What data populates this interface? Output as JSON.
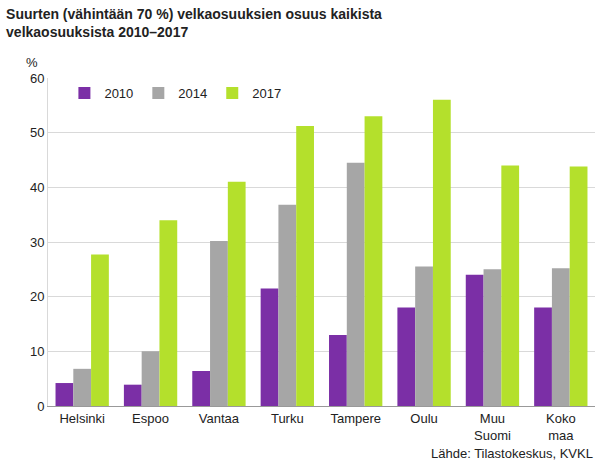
{
  "chart_data": {
    "type": "bar",
    "title": "Suurten (vähintään 70 %) velkaosuuksien osuus kaikista\nvelkaosuuksista 2010–2017",
    "ylabel": "%",
    "source": "Lähde: Tilastokeskus, KVKL",
    "categories": [
      "Helsinki",
      "Espoo",
      "Vantaa",
      "Turku",
      "Tampere",
      "Oulu",
      "Muu Suomi",
      "Koko maa"
    ],
    "series": [
      {
        "name": "2010",
        "color": "#7b2fa6",
        "values": [
          4.2,
          3.9,
          6.4,
          21.5,
          13,
          18,
          24,
          18
        ]
      },
      {
        "name": "2014",
        "color": "#a6a6a6",
        "values": [
          6.8,
          10,
          30.2,
          36.8,
          44.5,
          25.5,
          25,
          25.2
        ]
      },
      {
        "name": "2017",
        "color": "#b4e02c",
        "values": [
          27.7,
          34,
          41,
          51.2,
          53,
          56,
          44,
          43.8
        ]
      }
    ],
    "ylim": [
      0,
      60
    ],
    "yticks": [
      0,
      10,
      20,
      30,
      40,
      50,
      60
    ],
    "grid": true,
    "legend": "top left"
  }
}
